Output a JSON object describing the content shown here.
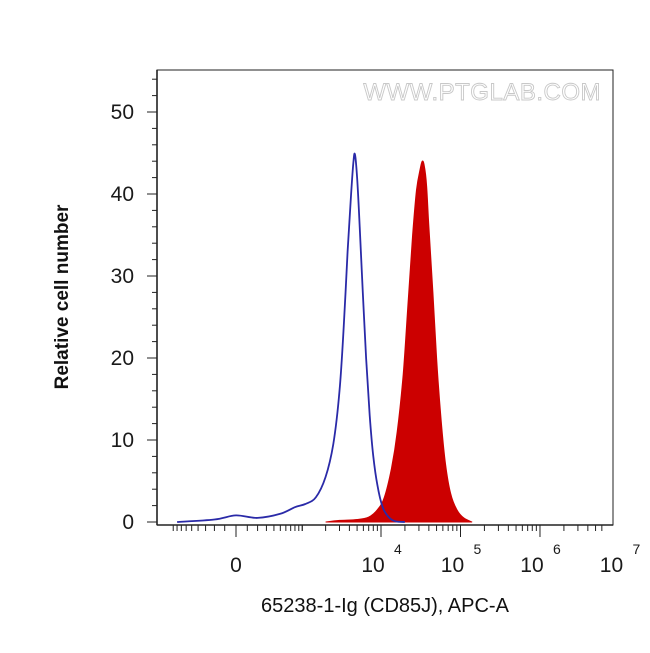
{
  "chart_data": {
    "type": "area",
    "title": "",
    "xlabel": "65238-1-Ig (CD85J), APC-A",
    "ylabel": "Relative cell number",
    "watermark": "WWW.PTGLAB.COM",
    "x_scale": "biexponential",
    "ylim": [
      0,
      55
    ],
    "y_ticks": [
      0,
      10,
      20,
      30,
      40,
      50
    ],
    "x_tick_labels": [
      {
        "base": "0",
        "exp": ""
      },
      {
        "base": "10",
        "exp": "4"
      },
      {
        "base": "10",
        "exp": "5"
      },
      {
        "base": "10",
        "exp": "6"
      },
      {
        "base": "10",
        "exp": "7"
      }
    ],
    "grid": false,
    "series": [
      {
        "style": "outline",
        "color": "#2a2aa8",
        "points": [
          [
            -800,
            0
          ],
          [
            -200,
            0.3
          ],
          [
            0,
            0.8
          ],
          [
            200,
            0.5
          ],
          [
            500,
            1.0
          ],
          [
            800,
            1.8
          ],
          [
            1100,
            2.2
          ],
          [
            1500,
            3.0
          ],
          [
            2000,
            5.5
          ],
          [
            2500,
            9.5
          ],
          [
            3000,
            16
          ],
          [
            3400,
            24
          ],
          [
            3800,
            33
          ],
          [
            4200,
            40
          ],
          [
            4500,
            44
          ],
          [
            4700,
            44.8
          ],
          [
            5000,
            42
          ],
          [
            5400,
            36
          ],
          [
            5900,
            28
          ],
          [
            6500,
            20
          ],
          [
            7200,
            13
          ],
          [
            8000,
            8
          ],
          [
            9000,
            4.5
          ],
          [
            10500,
            1.8
          ],
          [
            12500,
            0.6
          ],
          [
            15000,
            0.1
          ],
          [
            20000,
            0
          ]
        ]
      },
      {
        "style": "filled",
        "color": "#cc0000",
        "points": [
          [
            2000,
            0
          ],
          [
            3000,
            0.2
          ],
          [
            5000,
            0.3
          ],
          [
            7000,
            0.6
          ],
          [
            9000,
            1.5
          ],
          [
            11000,
            3
          ],
          [
            13500,
            6.5
          ],
          [
            16000,
            11
          ],
          [
            19000,
            18
          ],
          [
            22000,
            27
          ],
          [
            25000,
            35
          ],
          [
            28000,
            40.5
          ],
          [
            31000,
            43
          ],
          [
            33000,
            44
          ],
          [
            35000,
            43.5
          ],
          [
            37500,
            41
          ],
          [
            40000,
            36
          ],
          [
            45000,
            28
          ],
          [
            50000,
            20
          ],
          [
            57000,
            12.5
          ],
          [
            65000,
            7
          ],
          [
            75000,
            3.5
          ],
          [
            90000,
            1.5
          ],
          [
            110000,
            0.5
          ],
          [
            140000,
            0
          ]
        ]
      }
    ]
  }
}
